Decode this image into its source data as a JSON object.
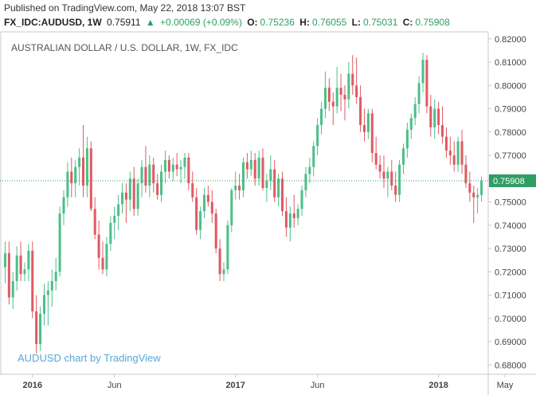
{
  "header": {
    "published": "Published on TradingView.com, May 22, 2018 13:07 BST",
    "symbol": "FX_IDC:AUDUSD, 1W",
    "last": "0.75911",
    "change": "+0.00069 (+0.09%)",
    "o_label": "O:",
    "o_value": "0.75236",
    "h_label": "H:",
    "h_value": "0.76055",
    "l_label": "L:",
    "l_value": "0.75031",
    "c_label": "C:",
    "c_value": "0.75908"
  },
  "colors": {
    "up": "#4dbf8a",
    "down": "#e05a62",
    "axis": "#c8c8c8",
    "price_tag": "#2f9e63",
    "watermark": "#5aa7d8"
  },
  "chart_data": {
    "type": "candlestick",
    "title": "AUSTRALIAN DOLLAR / U.S. DOLLAR, 1W, FX_IDC",
    "watermark": "AUDUSD chart by TradingView",
    "ylim": [
      0.676,
      0.823
    ],
    "y_ticks": [
      "0.68000",
      "0.69000",
      "0.70000",
      "0.71000",
      "0.72000",
      "0.73000",
      "0.74000",
      "0.75000",
      "0.76000",
      "0.77000",
      "0.78000",
      "0.79000",
      "0.80000",
      "0.81000",
      "0.82000"
    ],
    "x_labels": [
      {
        "text": "2016",
        "bold": true,
        "index": 7
      },
      {
        "text": "Jun",
        "bold": false,
        "index": 28
      },
      {
        "text": "2017",
        "bold": true,
        "index": 59
      },
      {
        "text": "Jun",
        "bold": false,
        "index": 80
      },
      {
        "text": "2018",
        "bold": true,
        "index": 111
      },
      {
        "text": "May",
        "bold": false,
        "index": 128
      }
    ],
    "last_price": "0.75908",
    "last_value": 0.75908,
    "candles": [
      {
        "o": 0.722,
        "h": 0.733,
        "l": 0.715,
        "c": 0.728
      },
      {
        "o": 0.728,
        "h": 0.733,
        "l": 0.706,
        "c": 0.709
      },
      {
        "o": 0.709,
        "h": 0.72,
        "l": 0.704,
        "c": 0.716
      },
      {
        "o": 0.716,
        "h": 0.731,
        "l": 0.712,
        "c": 0.727
      },
      {
        "o": 0.727,
        "h": 0.733,
        "l": 0.716,
        "c": 0.719
      },
      {
        "o": 0.719,
        "h": 0.724,
        "l": 0.716,
        "c": 0.721
      },
      {
        "o": 0.721,
        "h": 0.732,
        "l": 0.716,
        "c": 0.729
      },
      {
        "o": 0.729,
        "h": 0.733,
        "l": 0.7,
        "c": 0.703
      },
      {
        "o": 0.703,
        "h": 0.71,
        "l": 0.685,
        "c": 0.689
      },
      {
        "o": 0.689,
        "h": 0.705,
        "l": 0.686,
        "c": 0.702
      },
      {
        "o": 0.702,
        "h": 0.715,
        "l": 0.697,
        "c": 0.71
      },
      {
        "o": 0.71,
        "h": 0.716,
        "l": 0.697,
        "c": 0.712
      },
      {
        "o": 0.712,
        "h": 0.721,
        "l": 0.705,
        "c": 0.716
      },
      {
        "o": 0.716,
        "h": 0.726,
        "l": 0.712,
        "c": 0.72
      },
      {
        "o": 0.72,
        "h": 0.748,
        "l": 0.718,
        "c": 0.745
      },
      {
        "o": 0.745,
        "h": 0.755,
        "l": 0.74,
        "c": 0.752
      },
      {
        "o": 0.752,
        "h": 0.767,
        "l": 0.748,
        "c": 0.763
      },
      {
        "o": 0.763,
        "h": 0.769,
        "l": 0.752,
        "c": 0.758
      },
      {
        "o": 0.758,
        "h": 0.768,
        "l": 0.752,
        "c": 0.765
      },
      {
        "o": 0.765,
        "h": 0.773,
        "l": 0.757,
        "c": 0.769
      },
      {
        "o": 0.769,
        "h": 0.783,
        "l": 0.752,
        "c": 0.757
      },
      {
        "o": 0.757,
        "h": 0.778,
        "l": 0.752,
        "c": 0.773
      },
      {
        "o": 0.773,
        "h": 0.776,
        "l": 0.746,
        "c": 0.747
      },
      {
        "o": 0.747,
        "h": 0.752,
        "l": 0.734,
        "c": 0.736
      },
      {
        "o": 0.736,
        "h": 0.742,
        "l": 0.721,
        "c": 0.726
      },
      {
        "o": 0.726,
        "h": 0.733,
        "l": 0.719,
        "c": 0.721
      },
      {
        "o": 0.721,
        "h": 0.735,
        "l": 0.718,
        "c": 0.732
      },
      {
        "o": 0.732,
        "h": 0.744,
        "l": 0.729,
        "c": 0.741
      },
      {
        "o": 0.741,
        "h": 0.748,
        "l": 0.734,
        "c": 0.744
      },
      {
        "o": 0.744,
        "h": 0.753,
        "l": 0.738,
        "c": 0.749
      },
      {
        "o": 0.749,
        "h": 0.758,
        "l": 0.745,
        "c": 0.754
      },
      {
        "o": 0.754,
        "h": 0.758,
        "l": 0.741,
        "c": 0.751
      },
      {
        "o": 0.751,
        "h": 0.763,
        "l": 0.746,
        "c": 0.76
      },
      {
        "o": 0.76,
        "h": 0.765,
        "l": 0.744,
        "c": 0.747
      },
      {
        "o": 0.747,
        "h": 0.76,
        "l": 0.744,
        "c": 0.758
      },
      {
        "o": 0.758,
        "h": 0.768,
        "l": 0.752,
        "c": 0.765
      },
      {
        "o": 0.765,
        "h": 0.774,
        "l": 0.754,
        "c": 0.757
      },
      {
        "o": 0.757,
        "h": 0.77,
        "l": 0.752,
        "c": 0.766
      },
      {
        "o": 0.766,
        "h": 0.769,
        "l": 0.754,
        "c": 0.758
      },
      {
        "o": 0.758,
        "h": 0.762,
        "l": 0.751,
        "c": 0.753
      },
      {
        "o": 0.753,
        "h": 0.766,
        "l": 0.75,
        "c": 0.763
      },
      {
        "o": 0.763,
        "h": 0.772,
        "l": 0.758,
        "c": 0.768
      },
      {
        "o": 0.768,
        "h": 0.77,
        "l": 0.76,
        "c": 0.763
      },
      {
        "o": 0.763,
        "h": 0.769,
        "l": 0.759,
        "c": 0.766
      },
      {
        "o": 0.766,
        "h": 0.771,
        "l": 0.761,
        "c": 0.764
      },
      {
        "o": 0.764,
        "h": 0.768,
        "l": 0.758,
        "c": 0.765
      },
      {
        "o": 0.765,
        "h": 0.771,
        "l": 0.76,
        "c": 0.769
      },
      {
        "o": 0.769,
        "h": 0.771,
        "l": 0.755,
        "c": 0.758
      },
      {
        "o": 0.758,
        "h": 0.763,
        "l": 0.75,
        "c": 0.752
      },
      {
        "o": 0.752,
        "h": 0.756,
        "l": 0.736,
        "c": 0.738
      },
      {
        "o": 0.738,
        "h": 0.748,
        "l": 0.734,
        "c": 0.746
      },
      {
        "o": 0.746,
        "h": 0.756,
        "l": 0.743,
        "c": 0.753
      },
      {
        "o": 0.753,
        "h": 0.757,
        "l": 0.748,
        "c": 0.75
      },
      {
        "o": 0.75,
        "h": 0.755,
        "l": 0.741,
        "c": 0.745
      },
      {
        "o": 0.745,
        "h": 0.747,
        "l": 0.728,
        "c": 0.73
      },
      {
        "o": 0.73,
        "h": 0.734,
        "l": 0.716,
        "c": 0.719
      },
      {
        "o": 0.719,
        "h": 0.724,
        "l": 0.716,
        "c": 0.721
      },
      {
        "o": 0.721,
        "h": 0.742,
        "l": 0.719,
        "c": 0.74
      },
      {
        "o": 0.74,
        "h": 0.756,
        "l": 0.737,
        "c": 0.755
      },
      {
        "o": 0.755,
        "h": 0.763,
        "l": 0.751,
        "c": 0.757
      },
      {
        "o": 0.757,
        "h": 0.762,
        "l": 0.751,
        "c": 0.755
      },
      {
        "o": 0.755,
        "h": 0.769,
        "l": 0.752,
        "c": 0.767
      },
      {
        "o": 0.767,
        "h": 0.771,
        "l": 0.76,
        "c": 0.764
      },
      {
        "o": 0.764,
        "h": 0.772,
        "l": 0.761,
        "c": 0.768
      },
      {
        "o": 0.768,
        "h": 0.771,
        "l": 0.757,
        "c": 0.76
      },
      {
        "o": 0.76,
        "h": 0.772,
        "l": 0.757,
        "c": 0.769
      },
      {
        "o": 0.769,
        "h": 0.773,
        "l": 0.755,
        "c": 0.756
      },
      {
        "o": 0.756,
        "h": 0.762,
        "l": 0.75,
        "c": 0.759
      },
      {
        "o": 0.759,
        "h": 0.77,
        "l": 0.755,
        "c": 0.764
      },
      {
        "o": 0.764,
        "h": 0.768,
        "l": 0.75,
        "c": 0.752
      },
      {
        "o": 0.752,
        "h": 0.762,
        "l": 0.748,
        "c": 0.76
      },
      {
        "o": 0.76,
        "h": 0.763,
        "l": 0.744,
        "c": 0.746
      },
      {
        "o": 0.746,
        "h": 0.752,
        "l": 0.735,
        "c": 0.739
      },
      {
        "o": 0.739,
        "h": 0.748,
        "l": 0.733,
        "c": 0.745
      },
      {
        "o": 0.745,
        "h": 0.753,
        "l": 0.739,
        "c": 0.743
      },
      {
        "o": 0.743,
        "h": 0.749,
        "l": 0.74,
        "c": 0.747
      },
      {
        "o": 0.747,
        "h": 0.757,
        "l": 0.744,
        "c": 0.755
      },
      {
        "o": 0.755,
        "h": 0.765,
        "l": 0.752,
        "c": 0.762
      },
      {
        "o": 0.762,
        "h": 0.769,
        "l": 0.758,
        "c": 0.765
      },
      {
        "o": 0.765,
        "h": 0.776,
        "l": 0.761,
        "c": 0.774
      },
      {
        "o": 0.774,
        "h": 0.786,
        "l": 0.77,
        "c": 0.783
      },
      {
        "o": 0.783,
        "h": 0.793,
        "l": 0.779,
        "c": 0.79
      },
      {
        "o": 0.79,
        "h": 0.806,
        "l": 0.786,
        "c": 0.799
      },
      {
        "o": 0.799,
        "h": 0.803,
        "l": 0.789,
        "c": 0.793
      },
      {
        "o": 0.793,
        "h": 0.797,
        "l": 0.783,
        "c": 0.791
      },
      {
        "o": 0.791,
        "h": 0.808,
        "l": 0.788,
        "c": 0.799
      },
      {
        "o": 0.799,
        "h": 0.805,
        "l": 0.789,
        "c": 0.796
      },
      {
        "o": 0.796,
        "h": 0.8,
        "l": 0.785,
        "c": 0.794
      },
      {
        "o": 0.794,
        "h": 0.81,
        "l": 0.79,
        "c": 0.805
      },
      {
        "o": 0.805,
        "h": 0.813,
        "l": 0.796,
        "c": 0.8
      },
      {
        "o": 0.8,
        "h": 0.812,
        "l": 0.792,
        "c": 0.795
      },
      {
        "o": 0.795,
        "h": 0.8,
        "l": 0.78,
        "c": 0.783
      },
      {
        "o": 0.783,
        "h": 0.79,
        "l": 0.776,
        "c": 0.78
      },
      {
        "o": 0.78,
        "h": 0.79,
        "l": 0.777,
        "c": 0.788
      },
      {
        "o": 0.788,
        "h": 0.79,
        "l": 0.767,
        "c": 0.771
      },
      {
        "o": 0.771,
        "h": 0.778,
        "l": 0.764,
        "c": 0.766
      },
      {
        "o": 0.766,
        "h": 0.77,
        "l": 0.76,
        "c": 0.763
      },
      {
        "o": 0.763,
        "h": 0.77,
        "l": 0.756,
        "c": 0.76
      },
      {
        "o": 0.76,
        "h": 0.765,
        "l": 0.752,
        "c": 0.763
      },
      {
        "o": 0.763,
        "h": 0.768,
        "l": 0.755,
        "c": 0.757
      },
      {
        "o": 0.757,
        "h": 0.763,
        "l": 0.75,
        "c": 0.753
      },
      {
        "o": 0.753,
        "h": 0.768,
        "l": 0.75,
        "c": 0.766
      },
      {
        "o": 0.766,
        "h": 0.775,
        "l": 0.762,
        "c": 0.773
      },
      {
        "o": 0.773,
        "h": 0.784,
        "l": 0.769,
        "c": 0.781
      },
      {
        "o": 0.781,
        "h": 0.788,
        "l": 0.777,
        "c": 0.786
      },
      {
        "o": 0.786,
        "h": 0.795,
        "l": 0.783,
        "c": 0.792
      },
      {
        "o": 0.792,
        "h": 0.804,
        "l": 0.788,
        "c": 0.801
      },
      {
        "o": 0.801,
        "h": 0.814,
        "l": 0.797,
        "c": 0.811
      },
      {
        "o": 0.811,
        "h": 0.813,
        "l": 0.788,
        "c": 0.791
      },
      {
        "o": 0.791,
        "h": 0.796,
        "l": 0.778,
        "c": 0.782
      },
      {
        "o": 0.782,
        "h": 0.794,
        "l": 0.777,
        "c": 0.79
      },
      {
        "o": 0.79,
        "h": 0.793,
        "l": 0.779,
        "c": 0.783
      },
      {
        "o": 0.783,
        "h": 0.791,
        "l": 0.775,
        "c": 0.778
      },
      {
        "o": 0.778,
        "h": 0.782,
        "l": 0.769,
        "c": 0.772
      },
      {
        "o": 0.772,
        "h": 0.778,
        "l": 0.766,
        "c": 0.77
      },
      {
        "o": 0.77,
        "h": 0.776,
        "l": 0.763,
        "c": 0.766
      },
      {
        "o": 0.766,
        "h": 0.778,
        "l": 0.763,
        "c": 0.776
      },
      {
        "o": 0.776,
        "h": 0.781,
        "l": 0.762,
        "c": 0.766
      },
      {
        "o": 0.766,
        "h": 0.77,
        "l": 0.756,
        "c": 0.758
      },
      {
        "o": 0.758,
        "h": 0.763,
        "l": 0.75,
        "c": 0.754
      },
      {
        "o": 0.754,
        "h": 0.757,
        "l": 0.741,
        "c": 0.752
      },
      {
        "o": 0.752,
        "h": 0.756,
        "l": 0.745,
        "c": 0.753
      },
      {
        "o": 0.753,
        "h": 0.761,
        "l": 0.75,
        "c": 0.759
      }
    ]
  }
}
